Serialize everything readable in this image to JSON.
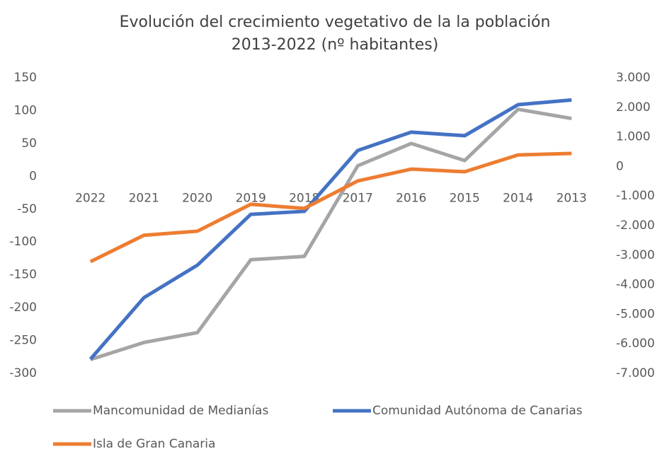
{
  "chart_data": {
    "type": "line",
    "title": [
      "Evolución del crecimiento vegetativo de la la población",
      "2013-2022 (nº habitantes)"
    ],
    "categories": [
      "2022",
      "2021",
      "2020",
      "2019",
      "2018",
      "2017",
      "2016",
      "2015",
      "2014",
      "2013"
    ],
    "series": [
      {
        "name": "Mancomunidad de Medianías",
        "color": "#a5a5a5",
        "values": [
          -279,
          -253,
          -238,
          -127,
          -122,
          16,
          50,
          24,
          102,
          88
        ]
      },
      {
        "name": "Comunidad Autónoma de Canarias",
        "color": "#4472c4",
        "axis": "y2",
        "values": [
          -6520,
          -4440,
          -3340,
          -1620,
          -1520,
          540,
          1160,
          1040,
          2090,
          2250
        ]
      },
      {
        "name": "Isla de Gran Canaria",
        "color": "#ed7d31",
        "axis": "y2",
        "values": [
          -3220,
          -2330,
          -2190,
          -1280,
          -1420,
          -490,
          -90,
          -180,
          390,
          440
        ]
      }
    ],
    "ylim": [
      -300,
      150
    ],
    "yticks": [
      -300,
      -250,
      -200,
      -150,
      -100,
      -50,
      0,
      50,
      100,
      150
    ],
    "y2lim": [
      -7000,
      3000
    ],
    "y2ticks": [
      {
        "value": -7000,
        "label": "-7.000"
      },
      {
        "value": -6000,
        "label": "-6.000"
      },
      {
        "value": -5000,
        "label": "-5.000"
      },
      {
        "value": -4000,
        "label": "-4.000"
      },
      {
        "value": -3000,
        "label": "-3.000"
      },
      {
        "value": -2000,
        "label": "-2.000"
      },
      {
        "value": -1000,
        "label": "-1.000"
      },
      0,
      {
        "value": 1000,
        "label": "1.000"
      },
      {
        "value": 2000,
        "label": "2.000"
      },
      {
        "value": 3000,
        "label": "3.000"
      }
    ],
    "legend": "bottom",
    "grid": false
  }
}
